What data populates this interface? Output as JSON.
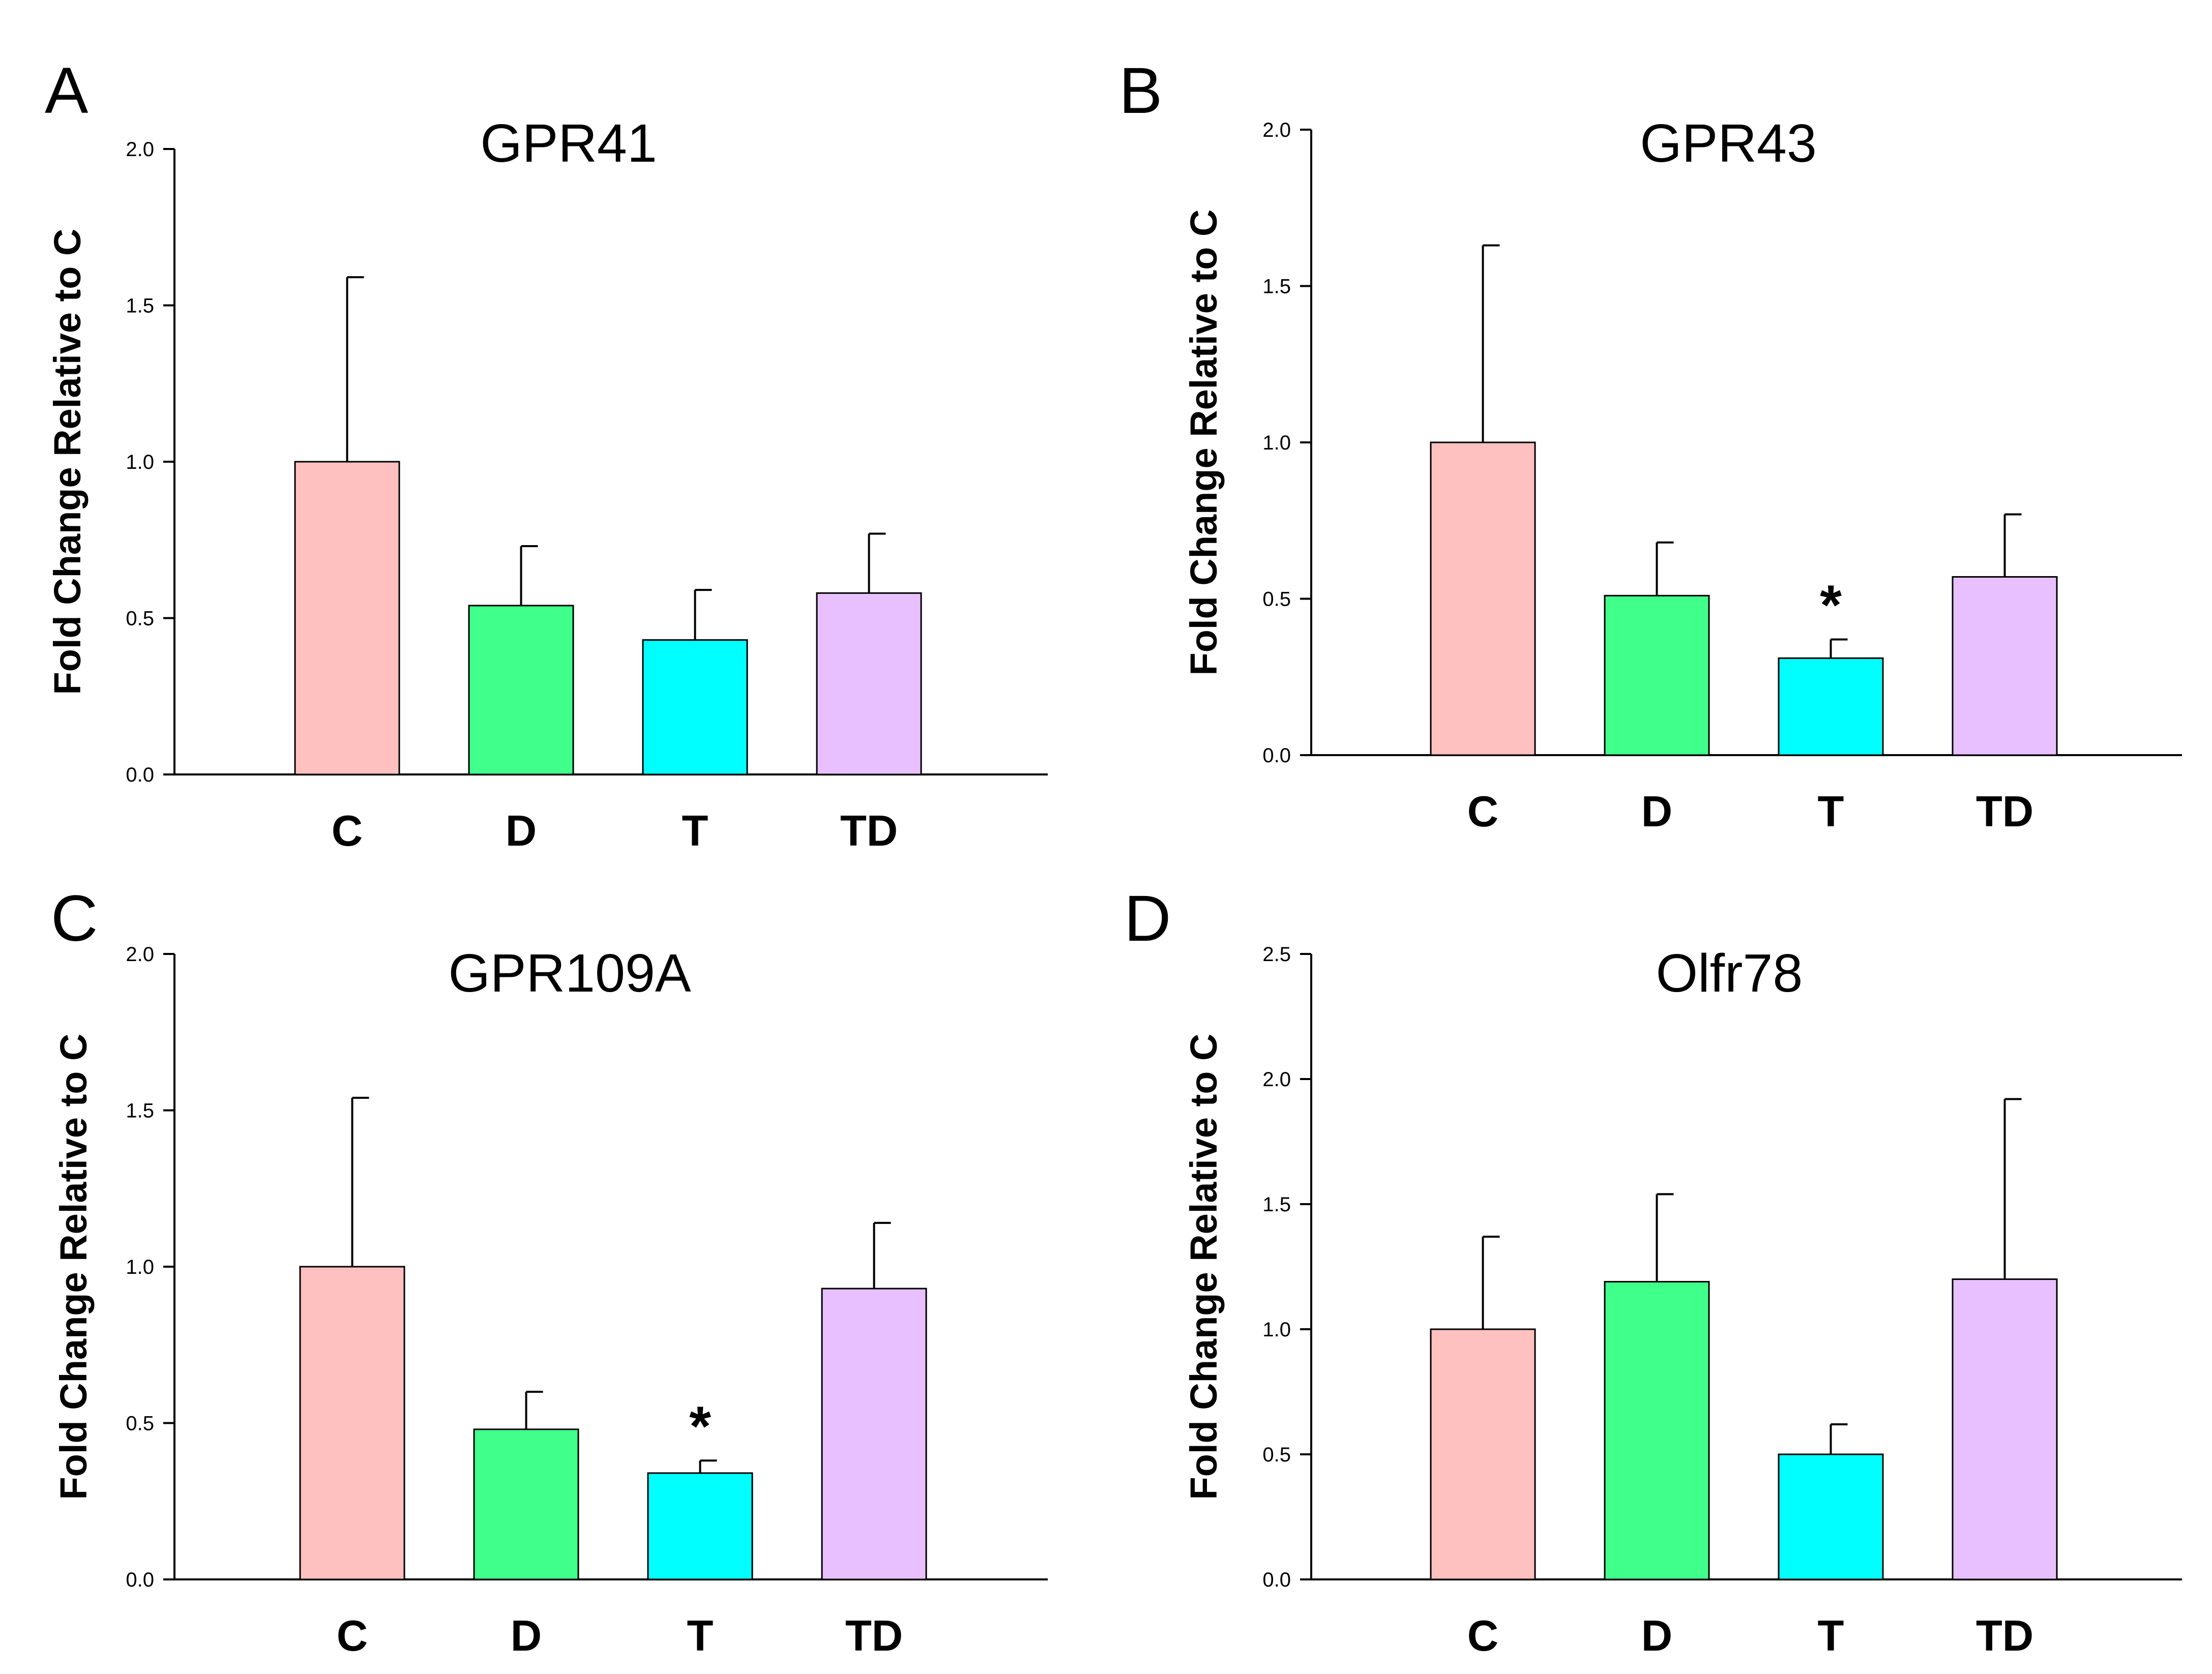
{
  "chart_data": [
    {
      "type": "bar",
      "panel": "A",
      "title": "GPR41",
      "xlabel": "",
      "ylabel": "Fold Change Relative to C",
      "ylim": [
        0,
        2.0
      ],
      "yticks": [
        "0.0",
        "0.5",
        "1.0",
        "1.5",
        "2.0"
      ],
      "categories": [
        "C",
        "D",
        "T",
        "TD"
      ],
      "values": [
        1.0,
        0.54,
        0.43,
        0.58
      ],
      "errors": [
        0.59,
        0.19,
        0.16,
        0.19
      ],
      "colors": [
        "#ffc0c0",
        "#40ff8a",
        "#00ffff",
        "#e8c0ff"
      ],
      "annotations": [
        "",
        "",
        "",
        ""
      ]
    },
    {
      "type": "bar",
      "panel": "B",
      "title": "GPR43",
      "xlabel": "",
      "ylabel": "Fold Change Relative to C",
      "ylim": [
        0,
        2.0
      ],
      "yticks": [
        "0.0",
        "0.5",
        "1.0",
        "1.5",
        "2.0"
      ],
      "categories": [
        "C",
        "D",
        "T",
        "TD"
      ],
      "values": [
        1.0,
        0.51,
        0.31,
        0.57
      ],
      "errors": [
        0.63,
        0.17,
        0.06,
        0.2
      ],
      "colors": [
        "#ffc0c0",
        "#40ff8a",
        "#00ffff",
        "#e8c0ff"
      ],
      "annotations": [
        "",
        "",
        "*",
        ""
      ]
    },
    {
      "type": "bar",
      "panel": "C",
      "title": "GPR109A",
      "xlabel": "",
      "ylabel": "Fold Change Relative to C",
      "ylim": [
        0,
        2.0
      ],
      "yticks": [
        "0.0",
        "0.5",
        "1.0",
        "1.5",
        "2.0"
      ],
      "categories": [
        "C",
        "D",
        "T",
        "TD"
      ],
      "values": [
        1.0,
        0.48,
        0.34,
        0.93
      ],
      "errors": [
        0.54,
        0.12,
        0.04,
        0.21
      ],
      "colors": [
        "#ffc0c0",
        "#40ff8a",
        "#00ffff",
        "#e8c0ff"
      ],
      "annotations": [
        "",
        "",
        "*",
        ""
      ]
    },
    {
      "type": "bar",
      "panel": "D",
      "title": "Olfr78",
      "xlabel": "",
      "ylabel": "Fold Change Relative to C",
      "ylim": [
        0,
        2.5
      ],
      "yticks": [
        "0.0",
        "0.5",
        "1.0",
        "1.5",
        "2.0",
        "2.5"
      ],
      "categories": [
        "C",
        "D",
        "T",
        "TD"
      ],
      "values": [
        1.0,
        1.19,
        0.5,
        1.2
      ],
      "errors": [
        0.37,
        0.35,
        0.12,
        0.72
      ],
      "colors": [
        "#ffc0c0",
        "#40ff8a",
        "#00ffff",
        "#e8c0ff"
      ],
      "annotations": [
        "",
        "",
        "",
        ""
      ]
    }
  ]
}
